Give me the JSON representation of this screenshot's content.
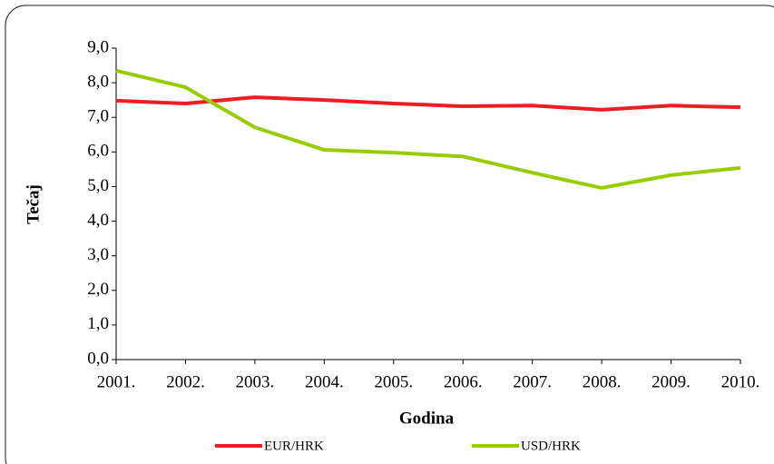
{
  "chart_data": {
    "type": "line",
    "categories": [
      "2001.",
      "2002.",
      "2003.",
      "2004.",
      "2005.",
      "2006.",
      "2007.",
      "2008.",
      "2009.",
      "2010."
    ],
    "series": [
      {
        "name": "EUR/HRK",
        "color": "#ee1c25",
        "values": [
          7.48,
          7.4,
          7.58,
          7.5,
          7.4,
          7.32,
          7.34,
          7.22,
          7.34,
          7.29
        ]
      },
      {
        "name": "USD/HRK",
        "color": "#99cc00",
        "values": [
          8.35,
          7.87,
          6.71,
          6.06,
          5.98,
          5.87,
          5.4,
          4.96,
          5.33,
          5.54
        ]
      }
    ],
    "x_label": "Godina",
    "y_label": "Tečaj",
    "ylim": [
      0,
      9
    ],
    "yticks": [
      {
        "value": 0,
        "label": "0,0"
      },
      {
        "value": 1,
        "label": "1,0"
      },
      {
        "value": 2,
        "label": "2,0"
      },
      {
        "value": 3,
        "label": "3,0"
      },
      {
        "value": 4,
        "label": "4,0"
      },
      {
        "value": 5,
        "label": "5,0"
      },
      {
        "value": 6,
        "label": "6,0"
      },
      {
        "value": 7,
        "label": "7,0"
      },
      {
        "value": 8,
        "label": "8,0"
      },
      {
        "value": 9,
        "label": "9,0"
      }
    ],
    "grid": false,
    "legend": "bottom"
  }
}
